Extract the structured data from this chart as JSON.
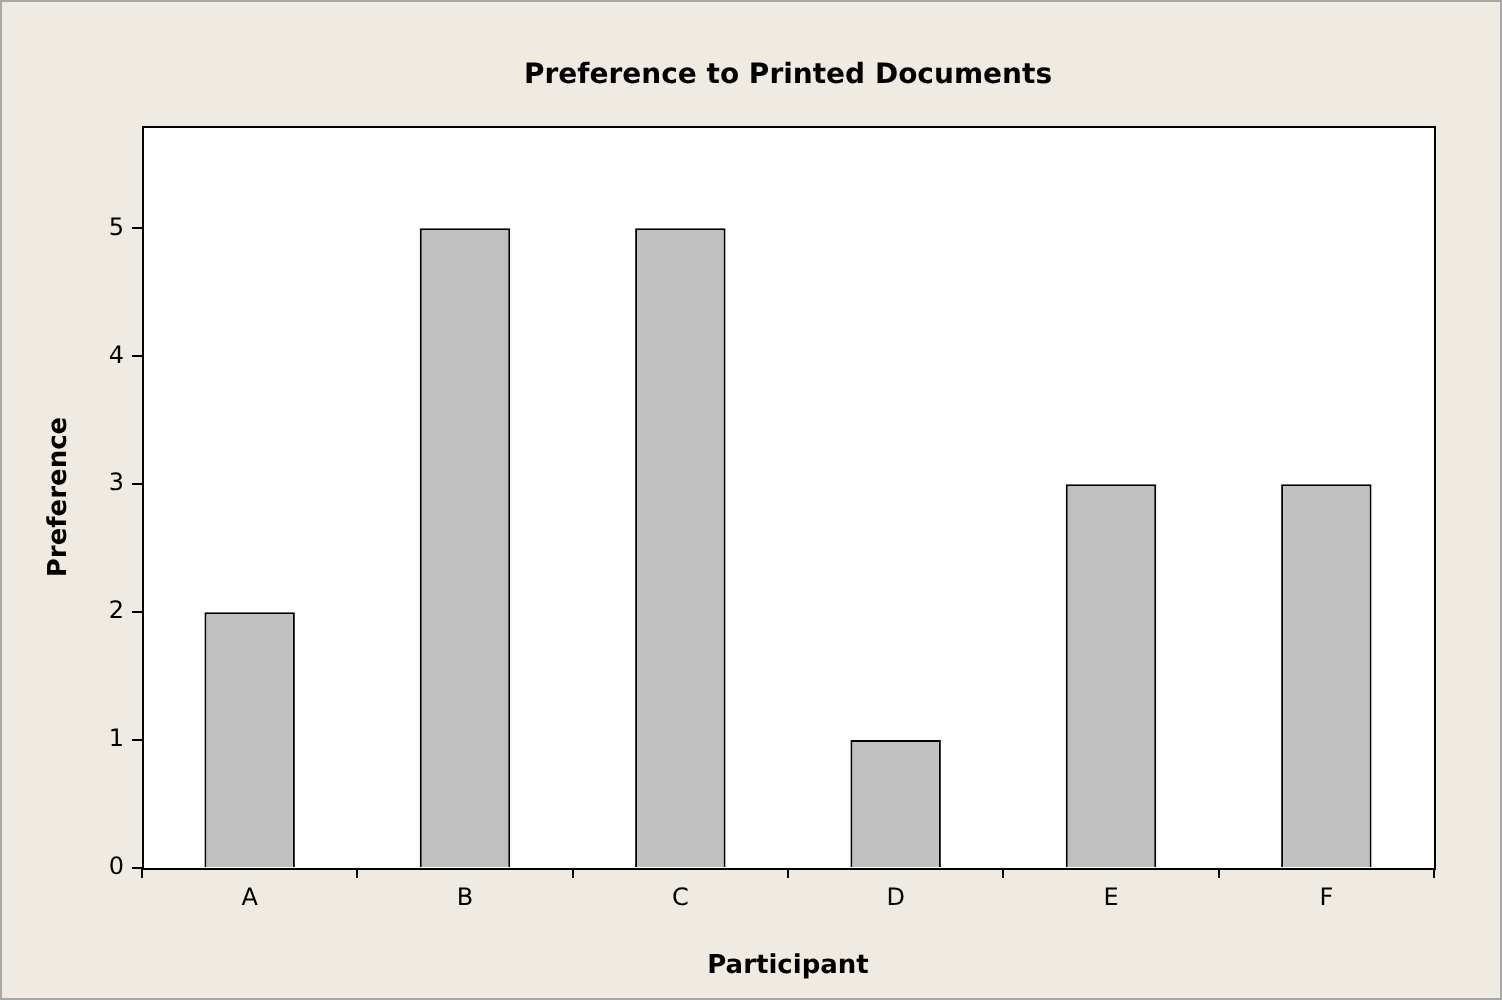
{
  "chart_data": {
    "type": "bar",
    "title": "Preference to Printed Documents",
    "xlabel": "Participant",
    "ylabel": "Preference",
    "categories": [
      "A",
      "B",
      "C",
      "D",
      "E",
      "F"
    ],
    "values": [
      2,
      5,
      5,
      1,
      3,
      3
    ],
    "color": "#c0c0c0",
    "ylim": [
      0,
      5.8
    ],
    "yticks": [
      0,
      1,
      2,
      3,
      4,
      5
    ],
    "grid": false,
    "legend": false
  }
}
